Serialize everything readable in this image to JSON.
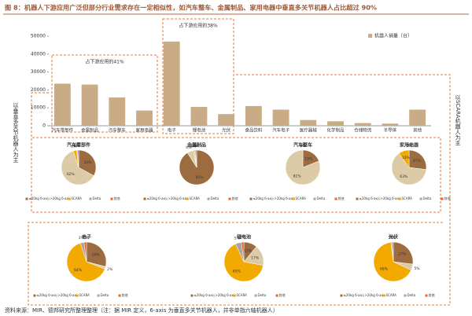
{
  "title": "图 8：机器人下游应用广泛但部分行业需求存在一定相似性，如汽车整车、金属制品、家用电器中垂直多关节机器人占比超过 90%",
  "source": "资料来源：MIR、德邦研究所整理整理（注：据 MIR 定义，6-axis 为垂直多关节机器人，并非单指六轴机器人）",
  "chart_data": [
    {
      "type": "bar",
      "categories": [
        "汽车零部件",
        "金属制品",
        "汽车整车",
        "家用电器",
        "电子",
        "锂电池",
        "光伏",
        "食品饮料",
        "汽车电子",
        "医疗器械",
        "化学制品",
        "仓储物流",
        "半导体",
        "其他"
      ],
      "series": [
        {
          "name": "机器人销量（台）",
          "color": "#c9ab85",
          "values": [
            23500,
            23000,
            15800,
            8500,
            47000,
            10500,
            6500,
            11000,
            9000,
            3200,
            2500,
            1500,
            1200,
            9000
          ]
        }
      ],
      "ylim": [
        0,
        50000
      ],
      "yticks": [
        0,
        10000,
        20000,
        30000,
        40000,
        50000
      ],
      "annotations": [
        "占下游应用的41%",
        "占下游应用的38%"
      ],
      "side_notes": [
        "以垂直多关节机器人为主",
        "以SCARA机器人为主"
      ]
    },
    {
      "type": "pie",
      "title": "汽车零部件",
      "labels": [
        "≤20kg 6-axis",
        ">20kg 6-axis",
        "SCARA",
        "Delta",
        "其他"
      ],
      "colors": [
        "#9c6b3f",
        "#dccba6",
        "#f2a900",
        "#a6a6a6",
        "#e8622a"
      ],
      "values": [
        33,
        62,
        3,
        1,
        1
      ],
      "value_labels": [
        "33%",
        "62%",
        "3%",
        "1%",
        "1%"
      ]
    },
    {
      "type": "pie",
      "title": "金属制品",
      "labels": [
        "≤20kg 6-axis",
        ">20kg 6-axis",
        "SCARA",
        "Delta",
        "其他"
      ],
      "colors": [
        "#9c6b3f",
        "#dccba6",
        "#f2a900",
        "#a6a6a6",
        "#e8622a"
      ],
      "values": [
        91,
        6,
        1,
        1,
        1
      ],
      "value_labels": [
        "91%",
        "6%",
        "1%",
        "1%",
        "1%"
      ]
    },
    {
      "type": "pie",
      "title": "汽车整车",
      "labels": [
        "≤20kg 6-axis",
        ">20kg 6-axis",
        "SCARA",
        "Delta",
        "其他"
      ],
      "colors": [
        "#9c6b3f",
        "#dccba6",
        "#f2a900",
        "#a6a6a6",
        "#e8622a"
      ],
      "values": [
        19,
        81,
        0,
        0,
        0
      ],
      "value_labels": [
        "19%",
        "81%",
        "0%",
        "0%",
        "0%"
      ]
    },
    {
      "type": "pie",
      "title": "家用电器",
      "labels": [
        "≤20kg 6-axis",
        ">20kg 6-axis",
        "SCARA",
        "Delta",
        "其他"
      ],
      "colors": [
        "#9c6b3f",
        "#dccba6",
        "#f2a900",
        "#a6a6a6",
        "#e8622a"
      ],
      "values": [
        27,
        63,
        10,
        0,
        0
      ],
      "value_labels": [
        "27%",
        "63%",
        "10%",
        "0%",
        "0%"
      ]
    },
    {
      "type": "pie",
      "title": "电子",
      "labels": [
        "≤20kg 6-axis",
        ">20kg 6-axis",
        "SCARA",
        "Delta",
        "其他"
      ],
      "colors": [
        "#9c6b3f",
        "#dccba6",
        "#f2a900",
        "#a6a6a6",
        "#e8622a"
      ],
      "values": [
        29,
        2,
        64,
        3,
        2
      ],
      "value_labels": [
        "29%",
        "2%",
        "64%",
        "3%",
        "2%"
      ]
    },
    {
      "type": "pie",
      "title": "锂电池",
      "labels": [
        "≤20kg 6-axis",
        ">20kg 6-axis",
        "SCARA",
        "Delta",
        "其他"
      ],
      "colors": [
        "#9c6b3f",
        "#dccba6",
        "#f2a900",
        "#a6a6a6",
        "#e8622a"
      ],
      "values": [
        11,
        17,
        65,
        5,
        2
      ],
      "value_labels": [
        "11%",
        "17%",
        "65%",
        "5%",
        "2%"
      ]
    },
    {
      "type": "pie",
      "title": "光伏",
      "labels": [
        "≤20kg 6-axis",
        ">20kg 6-axis",
        "SCARA",
        "Delta",
        "其他"
      ],
      "colors": [
        "#9c6b3f",
        "#dccba6",
        "#f2a900",
        "#a6a6a6",
        "#e8622a"
      ],
      "values": [
        27,
        5,
        66,
        1,
        1
      ],
      "value_labels": [
        "27%",
        "5%",
        "66%",
        "1%",
        "1%"
      ]
    }
  ]
}
